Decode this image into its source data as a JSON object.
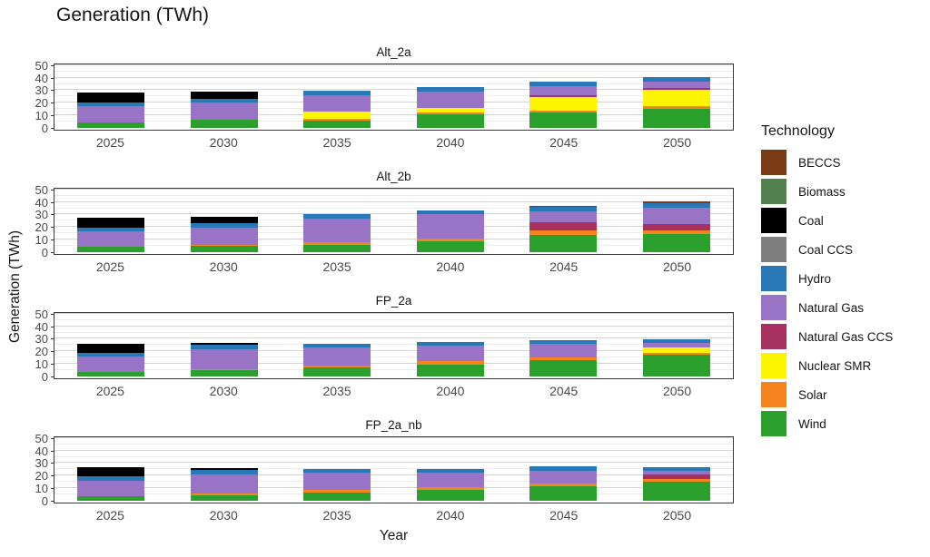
{
  "title": "Generation (TWh)",
  "y_axis_title": "Generation (TWh)",
  "x_axis_title": "Year",
  "legend": {
    "title": "Technology",
    "items": [
      {
        "label": "BECCS",
        "color": "#7B3A16"
      },
      {
        "label": "Biomass",
        "color": "#52804F"
      },
      {
        "label": "Coal",
        "color": "#000000"
      },
      {
        "label": "Coal CCS",
        "color": "#7F7F7F"
      },
      {
        "label": "Hydro",
        "color": "#2878B8"
      },
      {
        "label": "Natural Gas",
        "color": "#9873C6"
      },
      {
        "label": "Natural Gas CCS",
        "color": "#A8325F"
      },
      {
        "label": "Nuclear SMR",
        "color": "#FDF500"
      },
      {
        "label": "Solar",
        "color": "#F5841E"
      },
      {
        "label": "Wind",
        "color": "#2CA02C"
      }
    ]
  },
  "axes": {
    "y_ticks": [
      50,
      40,
      30,
      20,
      10,
      0
    ],
    "x_ticks": [
      "2025",
      "2030",
      "2035",
      "2040",
      "2045",
      "2050"
    ]
  },
  "chart_data": {
    "type": "bar",
    "stacked": true,
    "title": "Generation (TWh)",
    "xlabel": "Year",
    "ylabel": "Generation (TWh)",
    "ylim": [
      0,
      50
    ],
    "grid": "major and minor horizontal gridlines, theme_bw style",
    "legend_position": "right",
    "stack_order_bottom_to_top": [
      "Wind",
      "Solar",
      "Nuclear SMR",
      "Natural Gas CCS",
      "Natural Gas",
      "Hydro",
      "Coal CCS",
      "Coal",
      "Biomass",
      "BECCS"
    ],
    "categories": [
      2025,
      2030,
      2035,
      2040,
      2045,
      2050
    ],
    "facets": [
      {
        "name": "Alt_2a",
        "series": [
          {
            "name": "BECCS",
            "values": [
              0,
              0,
              0,
              0,
              0,
              0
            ]
          },
          {
            "name": "Biomass",
            "values": [
              0,
              0,
              0,
              0,
              0,
              0
            ]
          },
          {
            "name": "Coal",
            "values": [
              8,
              6,
              0,
              0,
              0,
              0
            ]
          },
          {
            "name": "Coal CCS",
            "values": [
              0,
              0,
              0,
              0,
              0,
              0
            ]
          },
          {
            "name": "Hydro",
            "values": [
              3,
              3,
              3.5,
              3.5,
              3.5,
              3.5
            ]
          },
          {
            "name": "Natural Gas",
            "values": [
              13,
              13.5,
              13,
              13,
              7,
              5
            ]
          },
          {
            "name": "Natural Gas CCS",
            "values": [
              0,
              0,
              0,
              0,
              1.5,
              2
            ]
          },
          {
            "name": "Nuclear SMR",
            "values": [
              0,
              0,
              5.5,
              3.5,
              10.5,
              12.5
            ]
          },
          {
            "name": "Solar",
            "values": [
              0,
              0,
              1.5,
              2,
              2,
              2.5
            ]
          },
          {
            "name": "Wind",
            "values": [
              4,
              6.5,
              6,
              10.5,
              12,
              15
            ]
          }
        ]
      },
      {
        "name": "Alt_2b",
        "series": [
          {
            "name": "BECCS",
            "values": [
              0,
              0,
              0,
              0,
              1,
              1.5
            ]
          },
          {
            "name": "Biomass",
            "values": [
              0,
              0,
              0,
              0,
              0,
              0
            ]
          },
          {
            "name": "Coal",
            "values": [
              8,
              5.5,
              0,
              0,
              0,
              0
            ]
          },
          {
            "name": "Coal CCS",
            "values": [
              0,
              0,
              0,
              0,
              0,
              0
            ]
          },
          {
            "name": "Hydro",
            "values": [
              3,
              3.5,
              3,
              3,
              3.5,
              3.5
            ]
          },
          {
            "name": "Natural Gas",
            "values": [
              12.5,
              13.5,
              19,
              19.5,
              9,
              13
            ]
          },
          {
            "name": "Natural Gas CCS",
            "values": [
              0,
              0,
              0,
              0,
              6.5,
              5.5
            ]
          },
          {
            "name": "Nuclear SMR",
            "values": [
              0,
              0,
              0,
              0,
              0,
              0
            ]
          },
          {
            "name": "Solar",
            "values": [
              0,
              1,
              2,
              2,
              3,
              2.5
            ]
          },
          {
            "name": "Wind",
            "values": [
              4,
              5,
              6,
              9,
              14,
              14.5
            ]
          }
        ]
      },
      {
        "name": "FP_2a",
        "series": [
          {
            "name": "BECCS",
            "values": [
              0,
              0,
              0,
              0,
              0,
              0
            ]
          },
          {
            "name": "Biomass",
            "values": [
              0,
              0,
              0,
              0,
              0,
              0
            ]
          },
          {
            "name": "Coal",
            "values": [
              7,
              1.5,
              0,
              0,
              0,
              0
            ]
          },
          {
            "name": "Coal CCS",
            "values": [
              0,
              0,
              0,
              0,
              0,
              0
            ]
          },
          {
            "name": "Hydro",
            "values": [
              3,
              3.5,
              3,
              3,
              3,
              3
            ]
          },
          {
            "name": "Natural Gas",
            "values": [
              12.5,
              16,
              14,
              12,
              10.5,
              3.5
            ]
          },
          {
            "name": "Natural Gas CCS",
            "values": [
              0,
              0,
              0,
              0,
              0,
              0
            ]
          },
          {
            "name": "Nuclear SMR",
            "values": [
              0,
              0,
              0,
              0,
              0,
              4
            ]
          },
          {
            "name": "Solar",
            "values": [
              0,
              1,
              2,
              3,
              2.5,
              2
            ]
          },
          {
            "name": "Wind",
            "values": [
              3.5,
              5,
              7,
              9.5,
              13,
              17
            ]
          }
        ]
      },
      {
        "name": "FP_2a_nb",
        "series": [
          {
            "name": "BECCS",
            "values": [
              0,
              0,
              0,
              0,
              0,
              0
            ]
          },
          {
            "name": "Biomass",
            "values": [
              0,
              0,
              0,
              0,
              0,
              0
            ]
          },
          {
            "name": "Coal",
            "values": [
              7,
              1.5,
              0,
              0,
              0,
              0
            ]
          },
          {
            "name": "Coal CCS",
            "values": [
              0,
              0,
              0,
              0,
              0,
              0
            ]
          },
          {
            "name": "Hydro",
            "values": [
              3.5,
              3.5,
              3,
              3,
              3.5,
              3.5
            ]
          },
          {
            "name": "Natural Gas",
            "values": [
              12.5,
              15.5,
              14,
              11.5,
              10.5,
              2.5
            ]
          },
          {
            "name": "Natural Gas CCS",
            "values": [
              0,
              0,
              0,
              0,
              0,
              4
            ]
          },
          {
            "name": "Nuclear SMR",
            "values": [
              0,
              0,
              0,
              0,
              0,
              0
            ]
          },
          {
            "name": "Solar",
            "values": [
              0,
              1,
              2,
              2,
              2,
              2
            ]
          },
          {
            "name": "Wind",
            "values": [
              3.5,
              4.5,
              6.5,
              9,
              11.5,
              15
            ]
          }
        ]
      }
    ]
  }
}
